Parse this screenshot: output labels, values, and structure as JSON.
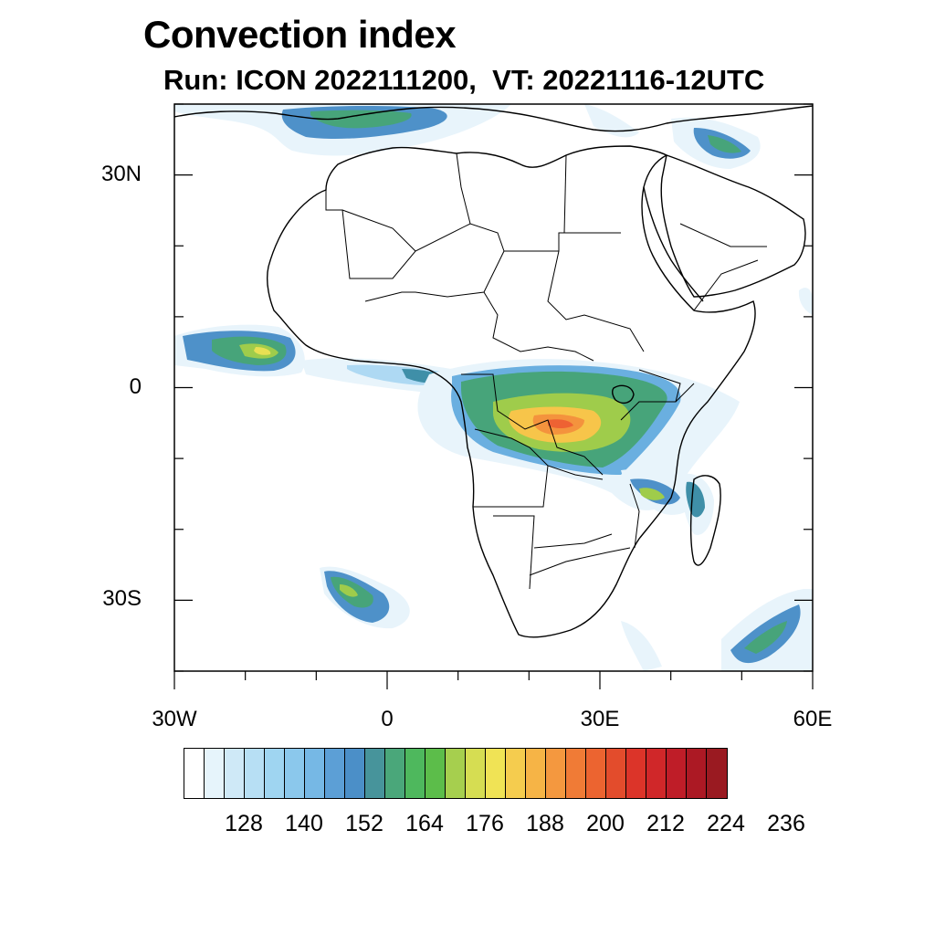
{
  "title": "Convection index",
  "subtitle": {
    "run_label": "Run: ICON 2022111200,",
    "valid_label": "  VT: 20221116-12UTC"
  },
  "map": {
    "extent": {
      "lon_min": -30,
      "lon_max": 60,
      "lat_min": -40,
      "lat_max": 40
    },
    "lon_ticks": [
      {
        "value": -30,
        "label": "30W"
      },
      {
        "value": 0,
        "label": "0"
      },
      {
        "value": 30,
        "label": "30E"
      },
      {
        "value": 60,
        "label": "60E"
      }
    ],
    "lat_ticks": [
      {
        "value": 30,
        "label": "30N"
      },
      {
        "value": 0,
        "label": "0"
      },
      {
        "value": -30,
        "label": "30S"
      }
    ],
    "field_colors": [
      "#e8f4fb",
      "#cde8f7",
      "#aed9f3",
      "#8ecbee",
      "#6aafe0",
      "#4e91c9",
      "#3f8fa8",
      "#47a47a",
      "#56b94e",
      "#9fcc4b",
      "#e9e053",
      "#f7c54a",
      "#f4933d",
      "#ee6233",
      "#de2f2b",
      "#b8212a"
    ],
    "coast_color": "#000000"
  },
  "colorbar": {
    "colors": [
      "#ffffff",
      "#e6f4fb",
      "#cfe9f7",
      "#b7dff4",
      "#9fd5f1",
      "#8bc8ec",
      "#76b8e5",
      "#5c9fd6",
      "#4b8fc8",
      "#47949b",
      "#4aa77a",
      "#4eb85d",
      "#5cbd4a",
      "#a6cf4e",
      "#d6dd52",
      "#f0e355",
      "#f5cc4e",
      "#f6b446",
      "#f4983f",
      "#f07b36",
      "#ec6430",
      "#e34c2c",
      "#dc3429",
      "#d02729",
      "#bf1d28",
      "#ac1924",
      "#9a1a21"
    ],
    "labels": [
      "128",
      "140",
      "152",
      "164",
      "176",
      "188",
      "200",
      "212",
      "224",
      "236"
    ]
  }
}
